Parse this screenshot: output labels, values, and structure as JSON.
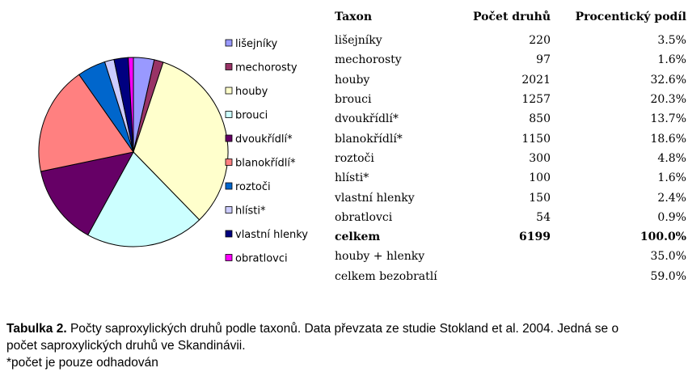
{
  "chart_data": {
    "type": "pie",
    "legend_position": "right",
    "categories": [
      "lišejníky",
      "mechorosty",
      "houby",
      "brouci",
      "dvoukřídlí*",
      "blanokřídlí*",
      "roztoči",
      "hlísti*",
      "vlastní hlenky",
      "obratlovci"
    ],
    "values": [
      220,
      97,
      2021,
      1257,
      850,
      1150,
      300,
      100,
      150,
      54
    ],
    "colors": [
      "#9999ff",
      "#993366",
      "#ffffcc",
      "#ccffff",
      "#660066",
      "#ff8080",
      "#0066cc",
      "#ccccff",
      "#000080",
      "#ff00ff"
    ]
  },
  "table": {
    "headers": [
      "Taxon",
      "Počet druhů",
      "Procentický podíl"
    ],
    "rows": [
      {
        "taxon": "lišejníky",
        "count": "220",
        "pct": "3.5%"
      },
      {
        "taxon": "mechorosty",
        "count": "97",
        "pct": "1.6%"
      },
      {
        "taxon": "houby",
        "count": "2021",
        "pct": "32.6%"
      },
      {
        "taxon": "brouci",
        "count": "1257",
        "pct": "20.3%"
      },
      {
        "taxon": "dvoukřídlí*",
        "count": "850",
        "pct": "13.7%"
      },
      {
        "taxon": "blanokřídlí*",
        "count": "1150",
        "pct": "18.6%"
      },
      {
        "taxon": "roztoči",
        "count": "300",
        "pct": "4.8%"
      },
      {
        "taxon": "hlísti*",
        "count": "100",
        "pct": "1.6%"
      },
      {
        "taxon": "vlastní hlenky",
        "count": "150",
        "pct": "2.4%"
      },
      {
        "taxon": "obratlovci",
        "count": "54",
        "pct": "0.9%"
      },
      {
        "taxon": "celkem",
        "count": "6199",
        "pct": "100.0%",
        "bold": true
      },
      {
        "taxon": "houby + hlenky",
        "count": "",
        "pct": "35.0%"
      },
      {
        "taxon": "celkem bezobratlí",
        "count": "",
        "pct": "59.0%"
      }
    ]
  },
  "caption": {
    "label": "Tabulka 2.",
    "line1": " Počty saproxylických druhů podle taxonů. Data převzata ze studie Stokland et al. 2004. Jedná se o",
    "line2": "počet saproxylických druhů ve Skandinávii.",
    "line3": "*počet je pouze odhadován"
  }
}
